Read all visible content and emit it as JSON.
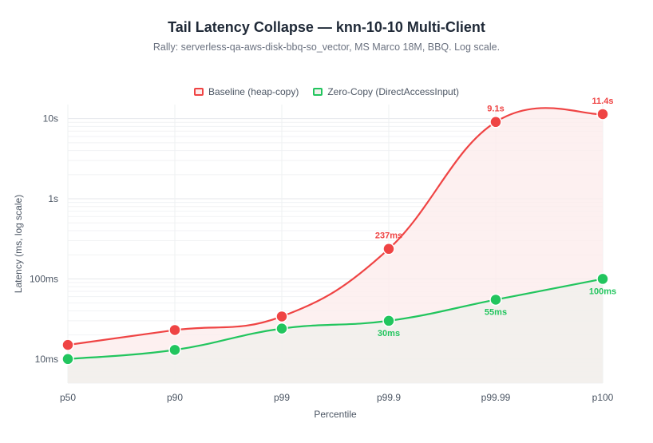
{
  "chart_data": {
    "type": "line",
    "title": "Tail Latency Collapse — knn-10-10 Multi-Client",
    "subtitle": "Rally: serverless-qa-aws-disk-bbq-so_vector, MS Marco 18M, BBQ. Log scale.",
    "xlabel": "Percentile",
    "ylabel": "Latency (ms, log scale)",
    "yscale": "log",
    "ylim": [
      5,
      15000
    ],
    "categories": [
      "p50",
      "p90",
      "p99",
      "p99.9",
      "p99.99",
      "p100"
    ],
    "yticks": [
      {
        "value": 10,
        "label": "10ms"
      },
      {
        "value": 100,
        "label": "100ms"
      },
      {
        "value": 1000,
        "label": "1s"
      },
      {
        "value": 10000,
        "label": "10s"
      }
    ],
    "legend_position": "top-center",
    "grid": true,
    "series": [
      {
        "name": "Baseline (heap-copy)",
        "color": "#ef4444",
        "fill": "#fdecec",
        "values": [
          15,
          23,
          34,
          237,
          9100,
          11400
        ],
        "labels": [
          "",
          "",
          "",
          "237ms",
          "9.1s",
          "11.4s"
        ],
        "label_position": "above"
      },
      {
        "name": "Zero-Copy (DirectAccessInput)",
        "color": "#22c55e",
        "fill": "#f0f0ec",
        "values": [
          10,
          13,
          24,
          30,
          55,
          100
        ],
        "labels": [
          "",
          "",
          "",
          "30ms",
          "55ms",
          "100ms"
        ],
        "label_position": "below"
      }
    ]
  }
}
